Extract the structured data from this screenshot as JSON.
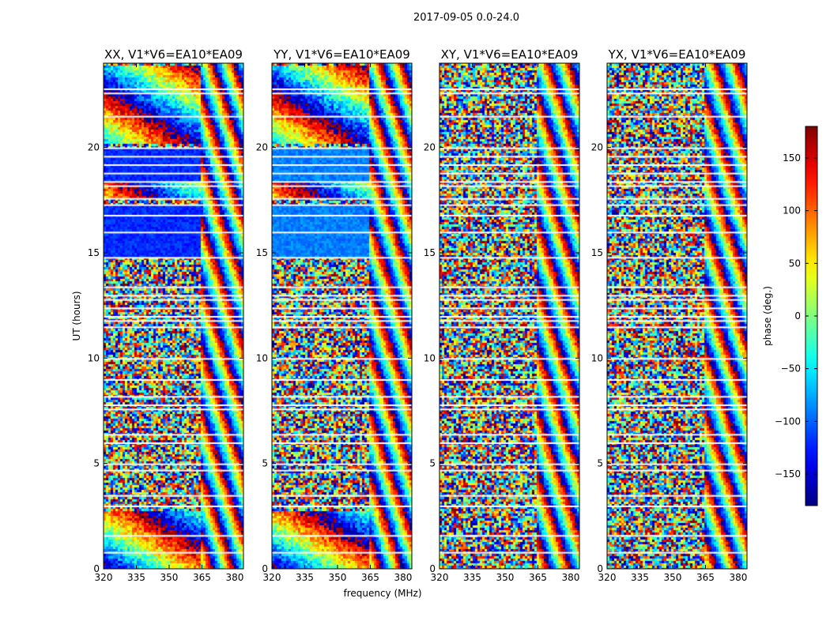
{
  "suptitle": "2017-09-05 0.0-24.0",
  "chart_data": {
    "type": "heatmap",
    "x_label": "frequency (MHz)",
    "y_label": "UT (hours)",
    "x_range": [
      320,
      384
    ],
    "y_range": [
      0,
      24
    ],
    "x_ticks": [
      320,
      335,
      350,
      365,
      380
    ],
    "y_ticks": [
      0,
      5,
      10,
      15,
      20
    ],
    "colorbar": {
      "label": "phase (deg.)",
      "range": [
        -180,
        180
      ],
      "ticks": [
        150,
        100,
        50,
        0,
        -50,
        -100,
        -150
      ],
      "tick_labels": [
        "150",
        "100",
        "50",
        "0",
        "−50",
        "−100",
        "−150"
      ],
      "colormap": "jet"
    },
    "panels": [
      {
        "title": "XX, V1*V6=EA10*EA09",
        "pol": "XX",
        "coherent_band_phase": -120
      },
      {
        "title": "YY, V1*V6=EA10*EA09",
        "pol": "YY",
        "coherent_band_phase": -90
      },
      {
        "title": "XY, V1*V6=EA10*EA09",
        "pol": "XY",
        "coherent_band_phase": null
      },
      {
        "title": "YX, V1*V6=EA10*EA09",
        "pol": "YX",
        "coherent_band_phase": null
      }
    ],
    "flagged_ut_hours": [
      0.8,
      1.6,
      3.0,
      3.5,
      4.7,
      5.0,
      6.0,
      6.4,
      7.6,
      7.8,
      8.2,
      9.0,
      10.0,
      11.5,
      11.8,
      12.0,
      12.4,
      12.8,
      13.0,
      13.4,
      14.8,
      16.0,
      16.8,
      17.3,
      17.6,
      18.2,
      18.4,
      18.8,
      19.2,
      19.6,
      20.0,
      21.5,
      22.6,
      22.8
    ],
    "grid": false,
    "legend": "none"
  }
}
